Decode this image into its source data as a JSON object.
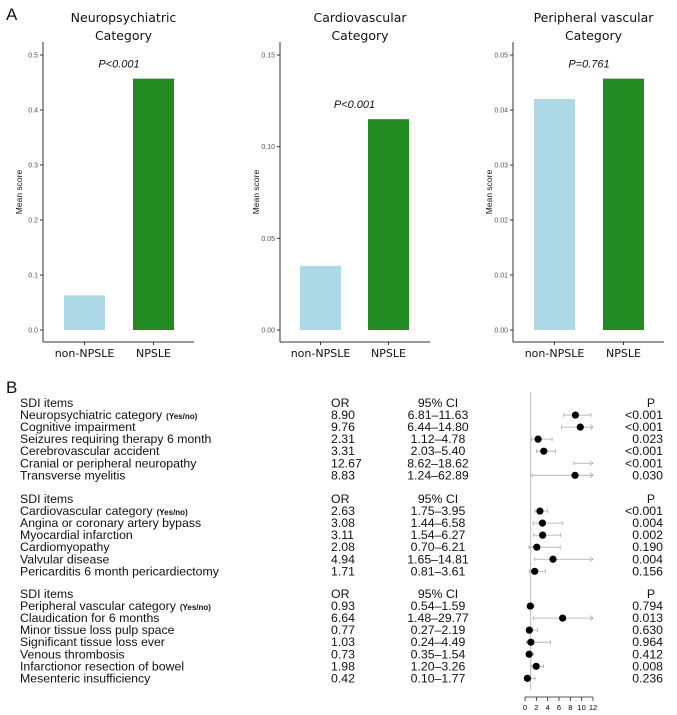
{
  "panel_labels": [
    "A",
    "B"
  ],
  "chart_data": [
    {
      "type": "bar",
      "title": "Neuropsychiatric Category",
      "title_lines": [
        "Neuropsychiatric",
        "Category"
      ],
      "ylabel": "Mean score",
      "categories": [
        "non-NPSLE",
        "NPSLE"
      ],
      "values": [
        0.063,
        0.457
      ],
      "ylim": [
        0,
        0.5
      ],
      "yticks": [
        "0.0",
        "0.1",
        "0.2",
        "0.3",
        "0.4",
        "0.5"
      ],
      "annotation": "P<0.001",
      "colors": [
        "#add8e6",
        "#228b22"
      ]
    },
    {
      "type": "bar",
      "title": "Cardiovascular Category",
      "title_lines": [
        "Cardiovascular",
        "Category"
      ],
      "ylabel": "Mean score",
      "categories": [
        "non-NPSLE",
        "NPSLE"
      ],
      "values": [
        0.035,
        0.115
      ],
      "ylim": [
        0,
        0.15
      ],
      "yticks": [
        "0.00",
        "0.05",
        "0.10",
        "0.15"
      ],
      "annotation": "P<0.001",
      "colors": [
        "#add8e6",
        "#228b22"
      ]
    },
    {
      "type": "bar",
      "title": "Peripheral vascular Category",
      "title_lines": [
        "Peripheral vascular",
        "Category"
      ],
      "ylabel": "Mean score",
      "categories": [
        "non-NPSLE",
        "NPSLE"
      ],
      "values": [
        0.042,
        0.0457
      ],
      "ylim": [
        0,
        0.05
      ],
      "yticks": [
        "0.00",
        "0.01",
        "0.02",
        "0.03",
        "0.04",
        "0.05"
      ],
      "annotation": "P=0.761",
      "colors": [
        "#add8e6",
        "#228b22"
      ]
    },
    {
      "type": "forest",
      "headers": {
        "item": "SDI items",
        "or": "OR",
        "ci": "95% CI",
        "p": "P"
      },
      "xlim": [
        0,
        12
      ],
      "xticks": [
        "0",
        "2",
        "4",
        "6",
        "8",
        "10",
        "12"
      ],
      "reference": 1,
      "groups": [
        {
          "rows": [
            {
              "item": "Neuropsychiatric category",
              "suffix": "(Yes/no)",
              "or": 8.9,
              "ci": "6.81–11.63",
              "lo": 6.81,
              "hi": 11.63,
              "p": "<0.001"
            },
            {
              "item": "Cognitive impairment",
              "or": 9.76,
              "ci": "6.44–14.80",
              "lo": 6.44,
              "hi": 14.8,
              "p": "<0.001"
            },
            {
              "item": "Seizures requiring therapy 6 month",
              "or": 2.31,
              "ci": "1.12–4.78",
              "lo": 1.12,
              "hi": 4.78,
              "p": "0.023"
            },
            {
              "item": "Cerebrovascular accident",
              "or": 3.31,
              "ci": "2.03–5.40",
              "lo": 2.03,
              "hi": 5.4,
              "p": "<0.001"
            },
            {
              "item": "Cranial or peripheral neuropathy",
              "or": 12.67,
              "ci": "8.62–18.62",
              "lo": 8.62,
              "hi": 18.62,
              "p": "<0.001"
            },
            {
              "item": "Transverse myelitis",
              "or": 8.83,
              "ci": "1.24–62.89",
              "lo": 1.24,
              "hi": 62.89,
              "p": "0.030"
            }
          ]
        },
        {
          "rows": [
            {
              "item": "Cardiovascular category",
              "suffix": "(Yes/no)",
              "or": 2.63,
              "ci": "1.75–3.95",
              "lo": 1.75,
              "hi": 3.95,
              "p": "<0.001"
            },
            {
              "item": "Angina or coronary artery bypass",
              "or": 3.08,
              "ci": "1.44–6.58",
              "lo": 1.44,
              "hi": 6.58,
              "p": "0.004"
            },
            {
              "item": "Myocardial infarction",
              "or": 3.11,
              "ci": "1.54–6.27",
              "lo": 1.54,
              "hi": 6.27,
              "p": "0.002"
            },
            {
              "item": "Cardiomyopathy",
              "or": 2.08,
              "ci": "0.70–6.21",
              "lo": 0.7,
              "hi": 6.21,
              "p": "0.190"
            },
            {
              "item": "Valvular disease",
              "or": 4.94,
              "ci": "1.65–14.81",
              "lo": 1.65,
              "hi": 14.81,
              "p": "0.004"
            },
            {
              "item": "Pericarditis 6 month pericardiectomy",
              "or": 1.71,
              "ci": "0.81–3.61",
              "lo": 0.81,
              "hi": 3.61,
              "p": "0.156"
            }
          ]
        },
        {
          "rows": [
            {
              "item": "Peripheral vascular category",
              "suffix": "(Yes/no)",
              "or": 0.93,
              "ci": "0.54–1.59",
              "lo": 0.54,
              "hi": 1.59,
              "p": "0.794"
            },
            {
              "item": "Claudication for 6 months",
              "or": 6.64,
              "ci": "1.48–29.77",
              "lo": 1.48,
              "hi": 29.77,
              "p": "0.013"
            },
            {
              "item": "Minor tissue loss pulp space",
              "or": 0.77,
              "ci": "0.27–2.19",
              "lo": 0.27,
              "hi": 2.19,
              "p": "0.630"
            },
            {
              "item": "Significant tissue loss ever",
              "or": 1.03,
              "ci": "0.24–4.49",
              "lo": 0.24,
              "hi": 4.49,
              "p": "0.964"
            },
            {
              "item": "Venous thrombosis",
              "or": 0.73,
              "ci": "0.35–1.54",
              "lo": 0.35,
              "hi": 1.54,
              "p": "0.412"
            },
            {
              "item": "Infarctionor resection of bowel",
              "or": 1.98,
              "ci": "1.20–3.26",
              "lo": 1.2,
              "hi": 3.26,
              "p": "0.008"
            },
            {
              "item": "Mesenteric insufficiency",
              "or": 0.42,
              "ci": "0.10–1.77",
              "lo": 0.1,
              "hi": 1.77,
              "p": "0.236"
            }
          ]
        }
      ]
    }
  ]
}
